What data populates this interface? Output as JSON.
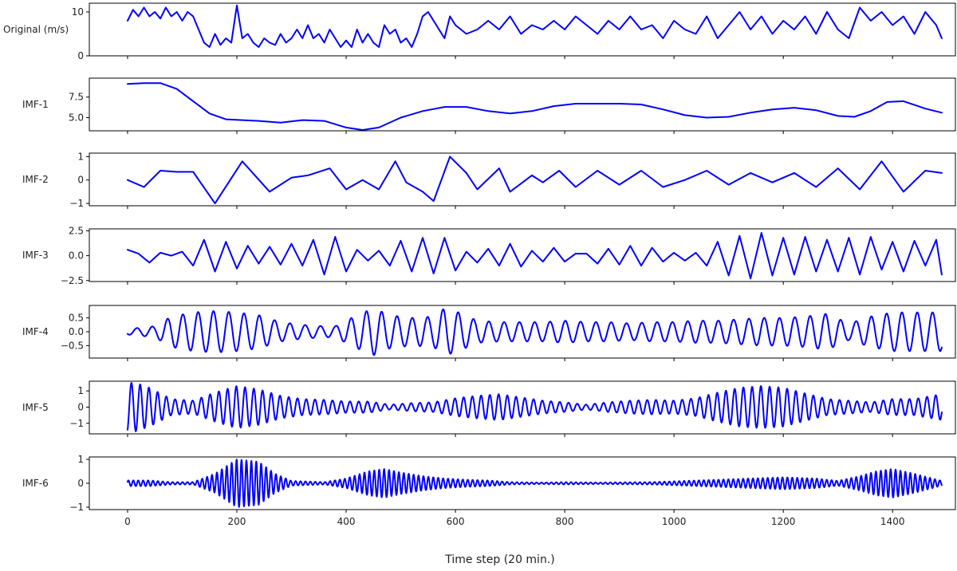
{
  "chart_data": {
    "type": "line",
    "xlabel": "Time step (20 min.)",
    "xlim": [
      -70,
      1515
    ],
    "xticks": [
      0,
      200,
      400,
      600,
      800,
      1000,
      1200,
      1400
    ],
    "line_color": "#0000ff",
    "panels": [
      {
        "label": "Original (m/s)",
        "ylim": [
          0,
          12
        ],
        "yticks": [
          {
            "v": 0,
            "t": "0"
          },
          {
            "v": 10,
            "t": "10"
          }
        ],
        "x": [
          0,
          10,
          20,
          30,
          40,
          50,
          60,
          70,
          80,
          90,
          100,
          110,
          120,
          130,
          140,
          150,
          160,
          170,
          180,
          190,
          200,
          210,
          220,
          230,
          240,
          250,
          260,
          270,
          280,
          290,
          300,
          310,
          320,
          330,
          340,
          350,
          360,
          370,
          380,
          390,
          400,
          410,
          420,
          430,
          440,
          450,
          460,
          470,
          480,
          490,
          500,
          510,
          520,
          530,
          540,
          550,
          560,
          570,
          580,
          590,
          600,
          620,
          640,
          660,
          680,
          700,
          720,
          740,
          760,
          780,
          800,
          820,
          840,
          860,
          880,
          900,
          920,
          940,
          960,
          980,
          1000,
          1020,
          1040,
          1060,
          1080,
          1100,
          1120,
          1140,
          1160,
          1180,
          1200,
          1220,
          1240,
          1260,
          1280,
          1300,
          1320,
          1340,
          1360,
          1380,
          1400,
          1420,
          1440,
          1460,
          1480,
          1490
        ],
        "values": [
          8,
          10.5,
          9,
          11,
          9,
          10,
          8.5,
          11,
          9,
          10,
          8,
          10,
          9,
          6,
          3,
          2,
          5,
          2.5,
          4,
          3,
          11.5,
          4,
          5,
          3,
          2,
          4,
          3,
          2.5,
          5,
          3,
          4,
          6,
          4,
          7,
          4,
          5,
          3,
          6,
          4,
          2,
          3.5,
          2,
          6,
          3,
          5,
          3,
          2,
          7,
          5,
          6,
          3,
          4,
          2,
          5,
          9,
          10,
          8,
          6,
          4,
          9,
          7,
          5,
          6,
          8,
          6,
          9,
          5,
          7,
          6,
          8,
          6,
          9,
          7,
          5,
          8,
          6,
          9,
          6,
          7,
          4,
          8,
          6,
          5,
          9,
          4,
          7,
          10,
          6,
          9,
          5,
          8,
          6,
          9,
          5,
          10,
          6,
          4,
          11,
          8,
          10,
          7,
          9,
          5,
          10,
          7,
          4
        ]
      },
      {
        "label": "IMF-1",
        "ylim": [
          3.4,
          9.8
        ],
        "yticks": [
          {
            "v": 5,
            "t": "5.0"
          },
          {
            "v": 7.5,
            "t": "7.5"
          }
        ],
        "x": [
          0,
          30,
          60,
          90,
          120,
          150,
          180,
          210,
          240,
          280,
          320,
          360,
          400,
          430,
          460,
          500,
          540,
          580,
          620,
          660,
          700,
          740,
          780,
          820,
          860,
          900,
          940,
          980,
          1020,
          1060,
          1100,
          1140,
          1180,
          1220,
          1260,
          1300,
          1330,
          1360,
          1390,
          1420,
          1460,
          1490
        ],
        "values": [
          9.1,
          9.2,
          9.2,
          8.5,
          7,
          5.5,
          4.8,
          4.7,
          4.6,
          4.4,
          4.7,
          4.6,
          3.8,
          3.5,
          3.8,
          5,
          5.8,
          6.3,
          6.3,
          5.8,
          5.5,
          5.8,
          6.4,
          6.7,
          6.7,
          6.7,
          6.6,
          6,
          5.3,
          5,
          5.1,
          5.6,
          6,
          6.2,
          5.9,
          5.2,
          5.1,
          5.8,
          6.9,
          7,
          6.1,
          5.6
        ]
      },
      {
        "label": "IMF-2",
        "ylim": [
          -1.1,
          1.15
        ],
        "yticks": [
          {
            "v": -1,
            "t": "−1"
          },
          {
            "v": 0,
            "t": "0"
          },
          {
            "v": 1,
            "t": "1"
          }
        ],
        "x": [
          0,
          30,
          60,
          90,
          120,
          160,
          210,
          260,
          300,
          330,
          370,
          400,
          430,
          460,
          490,
          510,
          540,
          560,
          590,
          620,
          640,
          680,
          700,
          740,
          760,
          790,
          820,
          860,
          900,
          940,
          980,
          1020,
          1060,
          1100,
          1140,
          1180,
          1220,
          1260,
          1300,
          1340,
          1380,
          1420,
          1460,
          1490
        ],
        "values": [
          0,
          -0.3,
          0.4,
          0.35,
          0.35,
          -1,
          0.8,
          -0.5,
          0.1,
          0.2,
          0.5,
          -0.4,
          0,
          -0.4,
          0.8,
          -0.1,
          -0.5,
          -0.9,
          1,
          0.3,
          -0.4,
          0.5,
          -0.5,
          0.2,
          -0.1,
          0.4,
          -0.3,
          0.4,
          -0.2,
          0.4,
          -0.3,
          0,
          0.4,
          -0.2,
          0.3,
          -0.1,
          0.3,
          -0.3,
          0.5,
          -0.4,
          0.8,
          -0.5,
          0.4,
          0.3
        ]
      },
      {
        "label": "IMF-3",
        "ylim": [
          -2.6,
          2.7
        ],
        "yticks": [
          {
            "v": -2.5,
            "t": "−2.5"
          },
          {
            "v": 0,
            "t": "0.0"
          },
          {
            "v": 2.5,
            "t": "2.5"
          }
        ],
        "x": [
          0,
          20,
          40,
          60,
          80,
          100,
          120,
          140,
          160,
          180,
          200,
          220,
          240,
          260,
          280,
          300,
          320,
          340,
          360,
          380,
          400,
          420,
          440,
          460,
          480,
          500,
          520,
          540,
          560,
          580,
          600,
          620,
          640,
          660,
          680,
          700,
          720,
          740,
          760,
          780,
          800,
          820,
          840,
          860,
          880,
          900,
          920,
          940,
          960,
          980,
          1000,
          1020,
          1040,
          1060,
          1080,
          1100,
          1120,
          1140,
          1160,
          1180,
          1200,
          1220,
          1240,
          1260,
          1280,
          1300,
          1320,
          1340,
          1360,
          1380,
          1400,
          1420,
          1440,
          1460,
          1480,
          1490
        ],
        "values": [
          0.6,
          0.2,
          -0.7,
          0.3,
          0,
          0.4,
          -1,
          1.6,
          -1.6,
          1.4,
          -1.3,
          1,
          -0.8,
          0.9,
          -0.9,
          1.2,
          -1,
          1.6,
          -1.9,
          1.9,
          -1.6,
          0.6,
          -0.5,
          0.5,
          -1,
          1.5,
          -1.6,
          1.8,
          -1.8,
          1.8,
          -1.5,
          0.4,
          -0.7,
          0.7,
          -1,
          1.2,
          -1.1,
          0.5,
          -0.6,
          0.8,
          -0.6,
          0.2,
          0.2,
          -0.8,
          0.7,
          -0.9,
          1,
          -1,
          0.8,
          -0.6,
          0.3,
          -0.5,
          0.3,
          -1,
          1.4,
          -2,
          2,
          -2.3,
          2.3,
          -2,
          1.8,
          -1.9,
          1.9,
          -1.6,
          1.6,
          -1.6,
          1.8,
          -1.9,
          1.9,
          -1.4,
          1.4,
          -1.6,
          1.5,
          -1,
          1.6,
          -1.9
        ]
      },
      {
        "label": "IMF-4",
        "ylim": [
          -0.95,
          0.95
        ],
        "yticks": [
          {
            "v": -0.5,
            "t": "−0.5"
          },
          {
            "v": 0,
            "t": "0.0"
          },
          {
            "v": 0.5,
            "t": "0.5"
          }
        ],
        "env_x": [
          0,
          50,
          80,
          120,
          160,
          200,
          240,
          280,
          320,
          360,
          380,
          420,
          450,
          480,
          520,
          560,
          580,
          600,
          640,
          680,
          720,
          760,
          800,
          840,
          880,
          920,
          960,
          1000,
          1040,
          1080,
          1120,
          1160,
          1200,
          1240,
          1280,
          1320,
          1360,
          1400,
          1440,
          1490
        ],
        "env": [
          0.1,
          0.2,
          0.55,
          0.7,
          0.75,
          0.7,
          0.6,
          0.35,
          0.25,
          0.2,
          0.2,
          0.6,
          0.85,
          0.6,
          0.5,
          0.55,
          0.85,
          0.75,
          0.4,
          0.35,
          0.35,
          0.35,
          0.4,
          0.35,
          0.35,
          0.3,
          0.35,
          0.35,
          0.4,
          0.4,
          0.45,
          0.5,
          0.5,
          0.55,
          0.65,
          0.3,
          0.55,
          0.7,
          0.7,
          0.7
        ],
        "period": 28,
        "phase": 4.0
      },
      {
        "label": "IMF-5",
        "ylim": [
          -1.65,
          1.6
        ],
        "yticks": [
          {
            "v": -1,
            "t": "−1"
          },
          {
            "v": 0,
            "t": "0"
          },
          {
            "v": 1,
            "t": "1"
          }
        ],
        "env_x": [
          0,
          15,
          40,
          80,
          120,
          160,
          200,
          240,
          280,
          320,
          360,
          400,
          440,
          480,
          520,
          560,
          600,
          640,
          680,
          720,
          760,
          800,
          840,
          880,
          920,
          960,
          1000,
          1040,
          1080,
          1120,
          1160,
          1200,
          1240,
          1280,
          1320,
          1360,
          1400,
          1440,
          1490
        ],
        "env": [
          1.5,
          1.5,
          1.2,
          0.5,
          0.4,
          0.9,
          1.3,
          1.1,
          0.7,
          0.5,
          0.45,
          0.35,
          0.35,
          0.15,
          0.25,
          0.3,
          0.55,
          0.7,
          0.8,
          0.6,
          0.4,
          0.3,
          0.15,
          0.3,
          0.4,
          0.45,
          0.4,
          0.55,
          0.9,
          1.2,
          1.3,
          1.2,
          0.85,
          0.5,
          0.4,
          0.3,
          0.5,
          0.5,
          0.8
        ],
        "period": 16,
        "phase": -1.2
      },
      {
        "label": "IMF-6",
        "ylim": [
          -1.1,
          1.1
        ],
        "yticks": [
          {
            "v": -1,
            "t": "−1"
          },
          {
            "v": 0,
            "t": "0"
          },
          {
            "v": 1,
            "t": "1"
          }
        ],
        "env_x": [
          0,
          40,
          80,
          120,
          160,
          200,
          240,
          270,
          300,
          360,
          400,
          440,
          470,
          500,
          540,
          580,
          620,
          660,
          700,
          760,
          800,
          860,
          900,
          960,
          1020,
          1080,
          1140,
          1200,
          1260,
          1300,
          1340,
          1370,
          1400,
          1440,
          1490
        ],
        "env": [
          0.12,
          0.12,
          0.05,
          0.05,
          0.4,
          1,
          0.9,
          0.4,
          0.1,
          0.05,
          0.2,
          0.5,
          0.6,
          0.45,
          0.3,
          0.2,
          0.15,
          0.12,
          0.05,
          0.03,
          0.05,
          0.03,
          0.04,
          0.05,
          0.1,
          0.15,
          0.2,
          0.25,
          0.2,
          0.1,
          0.3,
          0.5,
          0.6,
          0.4,
          0.1
        ],
        "period": 9,
        "phase": 0.5
      }
    ]
  }
}
